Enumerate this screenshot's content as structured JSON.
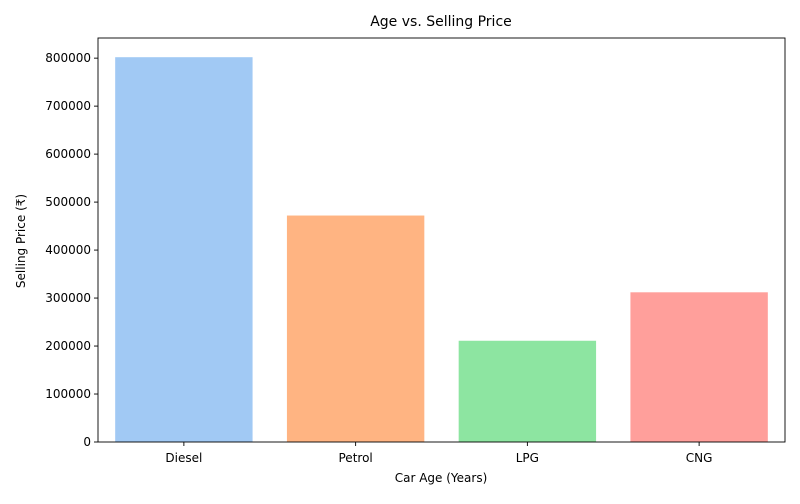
{
  "chart_data": {
    "type": "bar",
    "title": "Age vs. Selling Price",
    "xlabel": "Car Age (Years)",
    "ylabel": "Selling Price (₹)",
    "categories": [
      "Diesel",
      "Petrol",
      "LPG",
      "CNG"
    ],
    "values": [
      802000,
      472000,
      211000,
      312000
    ],
    "colors": [
      "#a1c9f4",
      "#ffb482",
      "#8de5a1",
      "#ff9f9b"
    ],
    "ylim": [
      0,
      842000
    ],
    "yticks": [
      0,
      100000,
      200000,
      300000,
      400000,
      500000,
      600000,
      700000,
      800000
    ],
    "grid": false,
    "legend": "none"
  }
}
